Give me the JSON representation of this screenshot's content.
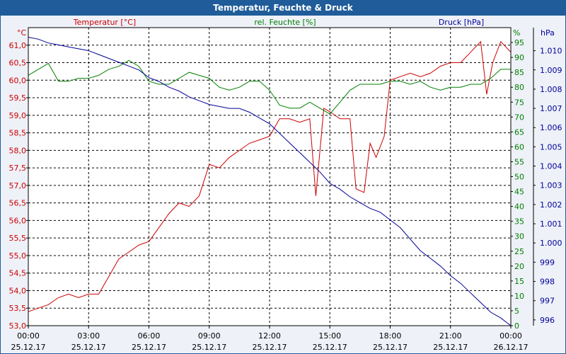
{
  "title": "Temperatur, Feuchte & Druck",
  "colors": {
    "temperature": "#cc0000",
    "humidity": "#008000",
    "pressure": "#000099",
    "titlebar": "#1f5c99"
  },
  "chart_data": {
    "type": "line",
    "title": "Temperatur, Feuchte & Druck",
    "grid": true,
    "x_ticks": [
      {
        "time": "00:00",
        "date": "25.12.17"
      },
      {
        "time": "03:00",
        "date": "25.12.17"
      },
      {
        "time": "06:00",
        "date": "25.12.17"
      },
      {
        "time": "09:00",
        "date": "25.12.17"
      },
      {
        "time": "12:00",
        "date": "25.12.17"
      },
      {
        "time": "15:00",
        "date": "25.12.17"
      },
      {
        "time": "18:00",
        "date": "25.12.17"
      },
      {
        "time": "21:00",
        "date": "25.12.17"
      },
      {
        "time": "00:00",
        "date": "26.12.17"
      }
    ],
    "axes": {
      "left": {
        "label": "Temperatur [°C]",
        "unit": "°C",
        "min": 53.0,
        "max": 61.5,
        "ticks": [
          "53,0",
          "53,5",
          "54,0",
          "54,5",
          "55,0",
          "55,5",
          "56,0",
          "56,5",
          "57,0",
          "57,5",
          "58,0",
          "58,5",
          "59,0",
          "59,5",
          "60,0",
          "60,5",
          "61,0"
        ]
      },
      "middle": {
        "label": "rel. Feuchte [%]",
        "unit": "%",
        "min": 0,
        "max": 100,
        "ticks": [
          "0",
          "5",
          "10",
          "15",
          "20",
          "25",
          "30",
          "35",
          "40",
          "45",
          "50",
          "55",
          "60",
          "65",
          "70",
          "75",
          "80",
          "85",
          "90",
          "95"
        ]
      },
      "right": {
        "label": "Druck [hPa]",
        "unit": "hPa",
        "min": 995.7,
        "max": 1011.2,
        "ticks": [
          "996",
          "997",
          "998",
          "999",
          "1.000",
          "1.001",
          "1.002",
          "1.003",
          "1.004",
          "1.005",
          "1.006",
          "1.007",
          "1.008",
          "1.009",
          "1.010"
        ]
      }
    },
    "series": [
      {
        "name": "Temperatur [°C]",
        "axis": "left",
        "x_hours": [
          0,
          0.5,
          1,
          1.5,
          2,
          2.5,
          3,
          3.5,
          4,
          4.5,
          5,
          5.5,
          6,
          6.5,
          7,
          7.5,
          8,
          8.5,
          9,
          9.5,
          10,
          10.5,
          11,
          11.5,
          12,
          12.5,
          13,
          13.5,
          14,
          14.3,
          14.7,
          15,
          15.5,
          16,
          16.3,
          16.7,
          17,
          17.3,
          17.7,
          18,
          18.5,
          19,
          19.5,
          20,
          20.5,
          21,
          21.5,
          22,
          22.5,
          22.8,
          23.1,
          23.5,
          24
        ],
        "values": [
          53.4,
          53.5,
          53.6,
          53.8,
          53.9,
          53.8,
          53.9,
          53.9,
          54.4,
          54.9,
          55.1,
          55.3,
          55.4,
          55.8,
          56.2,
          56.5,
          56.4,
          56.7,
          57.6,
          57.5,
          57.8,
          58.0,
          58.2,
          58.3,
          58.4,
          58.9,
          58.9,
          58.8,
          58.9,
          56.7,
          59.2,
          59.1,
          58.9,
          58.9,
          56.9,
          56.8,
          58.2,
          57.8,
          58.4,
          60.0,
          60.1,
          60.2,
          60.1,
          60.2,
          60.4,
          60.5,
          60.5,
          60.8,
          61.1,
          59.6,
          60.5,
          61.1,
          60.8
        ]
      },
      {
        "name": "rel. Feuchte [%]",
        "axis": "middle",
        "x_hours": [
          0,
          0.5,
          1,
          1.5,
          2,
          2.5,
          3,
          3.5,
          4,
          4.5,
          5,
          5.5,
          6,
          6.5,
          7,
          7.5,
          8,
          8.5,
          9,
          9.5,
          10,
          10.5,
          11,
          11.5,
          12,
          12.5,
          13,
          13.5,
          14,
          14.5,
          15,
          15.5,
          16,
          16.5,
          17,
          17.5,
          18,
          18.5,
          19,
          19.5,
          20,
          20.5,
          21,
          21.5,
          22,
          22.5,
          23,
          23.5,
          24
        ],
        "values": [
          84,
          86,
          88,
          82,
          82,
          83,
          83,
          84,
          86,
          87,
          89,
          87,
          82,
          81,
          81,
          83,
          85,
          84,
          83,
          80,
          79,
          80,
          82,
          82,
          79,
          74,
          73,
          73,
          75,
          73,
          71,
          75,
          79,
          81,
          81,
          81,
          82,
          82,
          81,
          82,
          80,
          79,
          80,
          80,
          81,
          81,
          83,
          86,
          86
        ]
      },
      {
        "name": "Druck [hPa]",
        "axis": "right",
        "x_hours": [
          0,
          0.5,
          1,
          1.5,
          2,
          2.5,
          3,
          3.5,
          4,
          4.5,
          5,
          5.5,
          6,
          6.5,
          7,
          7.5,
          8,
          8.5,
          9,
          9.5,
          10,
          10.5,
          11,
          11.5,
          12,
          12.5,
          13,
          13.5,
          14,
          14.5,
          15,
          15.5,
          16,
          16.5,
          17,
          17.5,
          18,
          18.5,
          19,
          19.5,
          20,
          20.5,
          21,
          21.5,
          22,
          22.5,
          23,
          23.5,
          24
        ],
        "values": [
          1010.7,
          1010.6,
          1010.4,
          1010.3,
          1010.2,
          1010.1,
          1010.0,
          1009.8,
          1009.6,
          1009.4,
          1009.2,
          1009.0,
          1008.6,
          1008.4,
          1008.1,
          1007.9,
          1007.6,
          1007.4,
          1007.2,
          1007.1,
          1007.0,
          1007.0,
          1006.8,
          1006.5,
          1006.2,
          1005.7,
          1005.2,
          1004.7,
          1004.2,
          1003.7,
          1003.1,
          1002.8,
          1002.4,
          1002.1,
          1001.8,
          1001.6,
          1001.2,
          1000.8,
          1000.2,
          999.6,
          999.2,
          998.8,
          998.3,
          997.9,
          997.4,
          996.9,
          996.4,
          996.1,
          995.7
        ]
      }
    ]
  }
}
